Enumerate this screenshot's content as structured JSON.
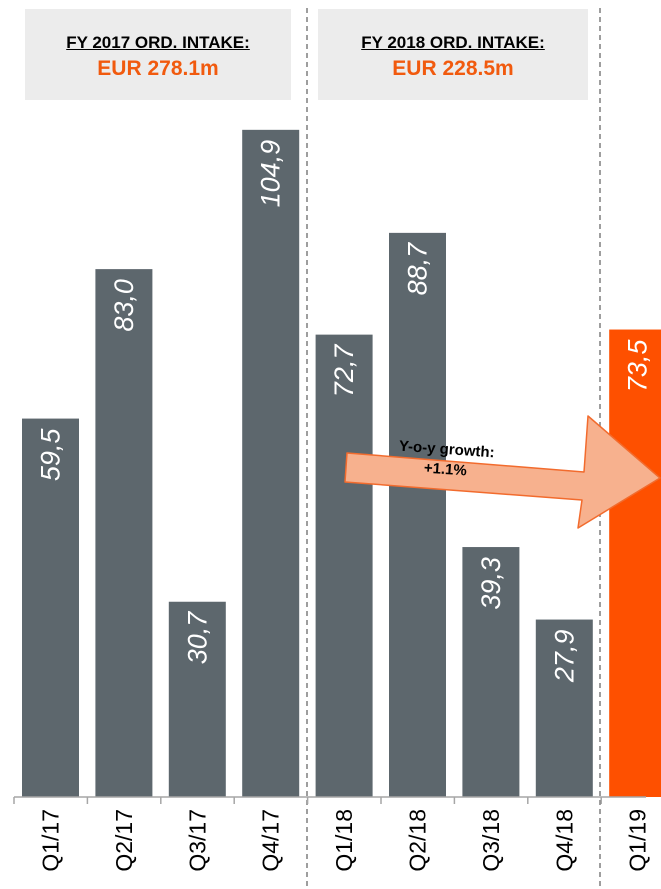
{
  "headers": [
    {
      "title": "FY 2017 ORD. INTAKE:",
      "value": "EUR 278.1m"
    },
    {
      "title": "FY 2018 ORD. INTAKE:",
      "value": "EUR 228.5m"
    }
  ],
  "growth_label": {
    "line1": "Y-o-y growth:",
    "line2": "+1.1%"
  },
  "colors": {
    "bar": "#5d676d",
    "highlight": "#fe5000",
    "accent_text": "#f15a0e",
    "arrow_fill": "#f7b18e",
    "arrow_stroke": "#f26b2d"
  },
  "chart_data": {
    "type": "bar",
    "categories": [
      "Q1/17",
      "Q2/17",
      "Q3/17",
      "Q4/17",
      "Q1/18",
      "Q2/18",
      "Q3/18",
      "Q4/18",
      "Q1/19"
    ],
    "values": [
      59.5,
      83.0,
      30.7,
      104.9,
      72.7,
      88.7,
      39.3,
      27.9,
      73.5
    ],
    "value_labels": [
      "59,5",
      "83,0",
      "30,7",
      "104,9",
      "72,7",
      "88,7",
      "39,3",
      "27,9",
      "73,5"
    ],
    "highlight_category": "Q1/19",
    "title": "",
    "xlabel": "",
    "ylabel": "",
    "ylim": [
      0,
      105
    ],
    "grid": false,
    "legend": "none"
  }
}
